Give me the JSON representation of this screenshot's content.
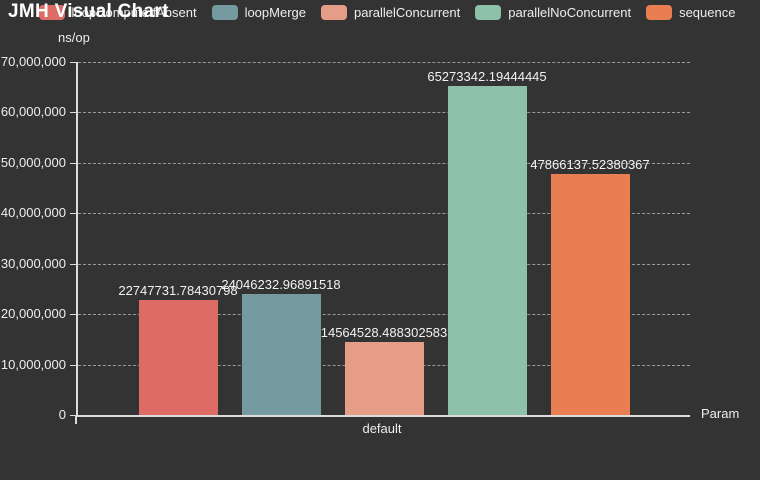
{
  "header": {
    "title": "JMH Visual Chart"
  },
  "chart_data": {
    "type": "bar",
    "title": "JMH Visual Chart",
    "categories": [
      "default"
    ],
    "series": [
      {
        "name": "loopComputeIfAbsent",
        "value": 22747731.78430798,
        "value_label": "22747731.78430798",
        "color": "#dd6b66"
      },
      {
        "name": "loopMerge",
        "value": 24046232.96891518,
        "value_label": "24046232.96891518",
        "color": "#759aa0"
      },
      {
        "name": "parallelConcurrent",
        "value": 14564528.488302583,
        "value_label": "14564528.488302583",
        "color": "#e69d87"
      },
      {
        "name": "parallelNoConcurrent",
        "value": 65273342.19444445,
        "value_label": "65273342.19444445",
        "color": "#8dc1a9"
      },
      {
        "name": "sequence",
        "value": 47866137.52380367,
        "value_label": "47866137.52380367",
        "color": "#ea7e53"
      }
    ],
    "ylabel": "ns/op",
    "xlabel": "Param",
    "ylim": [
      0,
      70000000
    ],
    "yticks": [
      {
        "value": 0,
        "label": "0"
      },
      {
        "value": 10000000,
        "label": "10,000,000"
      },
      {
        "value": 20000000,
        "label": "20,000,000"
      },
      {
        "value": 30000000,
        "label": "30,000,000"
      },
      {
        "value": 40000000,
        "label": "40,000,000"
      },
      {
        "value": 50000000,
        "label": "50,000,000"
      },
      {
        "value": 60000000,
        "label": "60,000,000"
      },
      {
        "value": 70000000,
        "label": "70,000,000"
      }
    ],
    "grid": true,
    "legend_position": "top"
  },
  "colors": {
    "background": "#333333",
    "text": "#eeeeee",
    "axis": "#dcdcdc",
    "gridline": "#9a9a9a"
  }
}
